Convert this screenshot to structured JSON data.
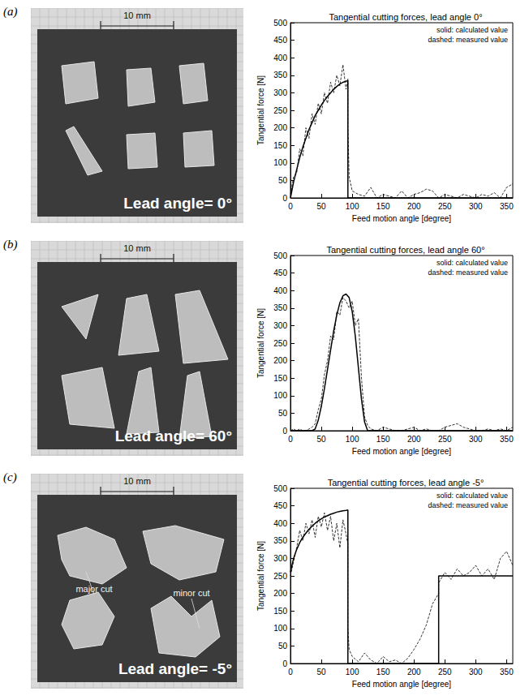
{
  "figure": {
    "panels": [
      {
        "letter": "(a)",
        "photo": {
          "scale_bar": "10 mm",
          "caption": "Lead angle= 0°"
        }
      },
      {
        "letter": "(b)",
        "photo": {
          "scale_bar": "10 mm",
          "caption": "Lead angle= 60°"
        }
      },
      {
        "letter": "(c)",
        "photo": {
          "scale_bar": "10 mm",
          "caption": "Lead angle= -5°",
          "labels": [
            "major cut",
            "minor cut"
          ]
        }
      }
    ]
  },
  "chart_data": [
    {
      "type": "line",
      "title": "Tangential cutting forces, lead angle 0°",
      "xlabel": "Feed motion angle [degree]",
      "ylabel": "Tangential force [N]",
      "annotations": [
        "solid: calculated value",
        "dashed: measured value"
      ],
      "x": [
        0,
        5,
        10,
        15,
        20,
        25,
        30,
        35,
        40,
        45,
        50,
        55,
        60,
        65,
        70,
        75,
        80,
        85,
        90,
        93,
        93,
        95,
        100,
        110,
        120,
        130,
        140,
        150,
        160,
        170,
        180,
        190,
        200,
        210,
        220,
        230,
        240,
        250,
        260,
        270,
        280,
        290,
        300,
        310,
        320,
        330,
        340,
        350,
        360
      ],
      "series": [
        {
          "name": "calculated value",
          "color": "#000000",
          "line_style": "solid",
          "values": [
            0,
            45,
            80,
            115,
            145,
            170,
            195,
            215,
            235,
            250,
            265,
            278,
            290,
            300,
            310,
            318,
            325,
            330,
            333,
            335,
            0,
            0,
            0,
            0,
            0,
            0,
            0,
            0,
            0,
            0,
            0,
            0,
            0,
            0,
            0,
            0,
            0,
            0,
            0,
            0,
            0,
            0,
            0,
            0,
            0,
            0,
            0,
            0,
            0
          ]
        },
        {
          "name": "measured value",
          "color": "#000000",
          "line_style": "dashed",
          "values": [
            10,
            60,
            70,
            140,
            120,
            200,
            170,
            240,
            210,
            270,
            240,
            300,
            270,
            330,
            300,
            350,
            320,
            380,
            310,
            340,
            200,
            60,
            20,
            10,
            5,
            30,
            0,
            10,
            5,
            0,
            20,
            0,
            10,
            15,
            25,
            20,
            0,
            10,
            5,
            0,
            10,
            5,
            0,
            10,
            5,
            15,
            0,
            30,
            40
          ]
        }
      ],
      "xlim": [
        0,
        360
      ],
      "xticks": [
        0,
        50,
        100,
        150,
        200,
        250,
        300,
        350
      ],
      "ylim": [
        0,
        500
      ],
      "yticks": [
        0,
        50,
        100,
        150,
        200,
        250,
        300,
        350,
        400,
        450,
        500
      ],
      "grid": false
    },
    {
      "type": "line",
      "title": "Tangential cutting forces, lead angle 60°",
      "xlabel": "Feed motion angle [degree]",
      "ylabel": "Tangential force [N]",
      "annotations": [
        "solid: calculated value",
        "dashed: measured value"
      ],
      "x": [
        0,
        5,
        10,
        15,
        20,
        25,
        30,
        35,
        40,
        45,
        50,
        55,
        60,
        65,
        70,
        75,
        80,
        85,
        90,
        95,
        100,
        105,
        110,
        115,
        120,
        125,
        130,
        140,
        150,
        160,
        170,
        180,
        190,
        200,
        210,
        220,
        230,
        240,
        250,
        260,
        270,
        280,
        290,
        300,
        310,
        320,
        330,
        340,
        350,
        360
      ],
      "series": [
        {
          "name": "calculated value",
          "color": "#000000",
          "line_style": "solid",
          "values": [
            0,
            0,
            0,
            0,
            0,
            0,
            0,
            0,
            5,
            30,
            70,
            120,
            175,
            230,
            285,
            330,
            365,
            385,
            390,
            380,
            340,
            270,
            180,
            90,
            25,
            0,
            0,
            0,
            0,
            0,
            0,
            0,
            0,
            0,
            0,
            0,
            0,
            0,
            0,
            0,
            0,
            0,
            0,
            0,
            0,
            0,
            0,
            0,
            0,
            0
          ]
        },
        {
          "name": "measured value",
          "color": "#000000",
          "line_style": "dashed",
          "values": [
            0,
            5,
            0,
            5,
            0,
            0,
            5,
            10,
            20,
            60,
            90,
            160,
            200,
            270,
            260,
            340,
            330,
            380,
            370,
            350,
            370,
            300,
            320,
            150,
            40,
            15,
            5,
            0,
            10,
            5,
            0,
            0,
            5,
            10,
            0,
            5,
            0,
            0,
            10,
            15,
            20,
            10,
            5,
            0,
            0,
            5,
            0,
            5,
            0,
            10
          ]
        }
      ],
      "xlim": [
        0,
        360
      ],
      "xticks": [
        0,
        50,
        100,
        150,
        200,
        250,
        300,
        350
      ],
      "ylim": [
        0,
        500
      ],
      "yticks": [
        0,
        50,
        100,
        150,
        200,
        250,
        300,
        350,
        400,
        450,
        500
      ],
      "grid": false
    },
    {
      "type": "line",
      "title": "Tangential cutting forces, lead angle -5°",
      "xlabel": "Feed motion angle [degree]",
      "ylabel": "Tangential force [N]",
      "annotations": [
        "solid: calculated value",
        "dashed: measured value"
      ],
      "x": [
        0,
        5,
        10,
        15,
        20,
        25,
        30,
        35,
        40,
        45,
        50,
        55,
        60,
        65,
        70,
        75,
        80,
        85,
        90,
        93,
        93,
        95,
        100,
        110,
        120,
        130,
        140,
        150,
        160,
        170,
        180,
        190,
        200,
        210,
        220,
        230,
        240,
        240,
        250,
        260,
        270,
        280,
        290,
        300,
        310,
        320,
        330,
        340,
        350,
        360
      ],
      "series": [
        {
          "name": "calculated value",
          "color": "#000000",
          "line_style": "solid",
          "values": [
            260,
            300,
            325,
            345,
            360,
            372,
            383,
            392,
            400,
            407,
            413,
            418,
            422,
            426,
            429,
            432,
            434,
            436,
            437,
            438,
            0,
            0,
            0,
            0,
            0,
            0,
            0,
            0,
            0,
            0,
            0,
            0,
            0,
            0,
            0,
            0,
            0,
            250,
            250,
            250,
            250,
            250,
            250,
            250,
            250,
            250,
            250,
            250,
            250,
            250
          ]
        },
        {
          "name": "measured value",
          "color": "#000000",
          "line_style": "dashed",
          "values": [
            250,
            290,
            330,
            380,
            350,
            400,
            370,
            410,
            360,
            420,
            390,
            430,
            380,
            420,
            350,
            400,
            330,
            410,
            370,
            340,
            100,
            40,
            20,
            5,
            30,
            10,
            0,
            20,
            5,
            10,
            0,
            15,
            40,
            70,
            110,
            170,
            200,
            230,
            260,
            240,
            270,
            250,
            260,
            280,
            250,
            270,
            240,
            300,
            320,
            280
          ]
        }
      ],
      "xlim": [
        0,
        360
      ],
      "xticks": [
        0,
        50,
        100,
        150,
        200,
        250,
        300,
        350
      ],
      "ylim": [
        0,
        500
      ],
      "yticks": [
        0,
        50,
        100,
        150,
        200,
        250,
        300,
        350,
        400,
        450,
        500
      ],
      "grid": false
    }
  ]
}
